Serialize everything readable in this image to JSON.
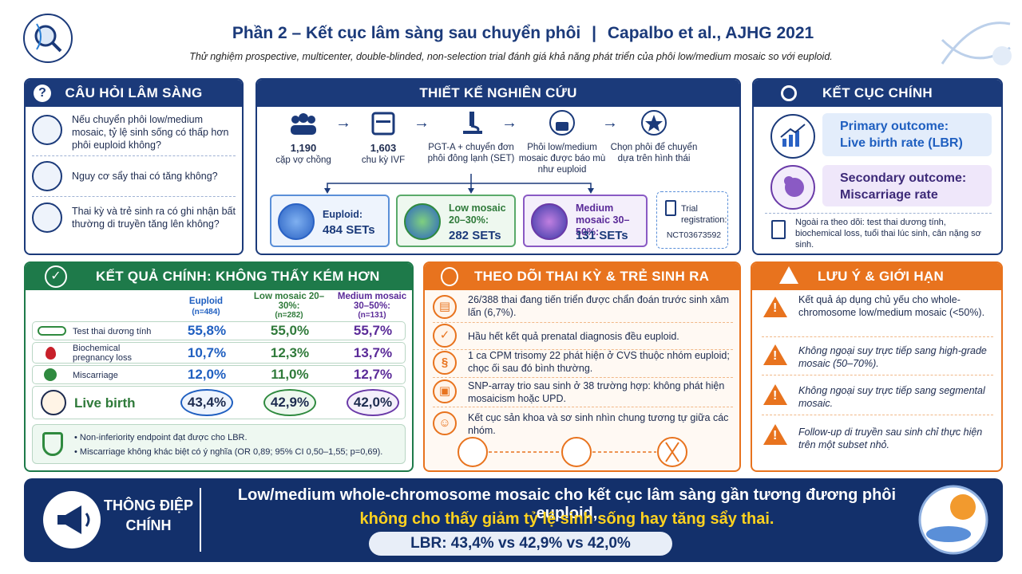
{
  "header": {
    "title": "Phần 2 – Kết cục lâm sàng sau chuyển phôi",
    "citation": "Capalbo et al., AJHG 2021",
    "subtitle": "Thử nghiệm prospective, multicenter, double-blinded, non-selection trial đánh giá khả năng phát triển của phôi low/medium mosaic so với euploid."
  },
  "clinical_questions": {
    "title": "CÂU HỎI LÂM SÀNG",
    "items": [
      "Nếu chuyển phôi low/medium mosaic, tỷ lệ sinh sống có thấp hơn phôi euploid không?",
      "Nguy cơ sẩy thai có tăng không?",
      "Thai kỳ và trẻ sinh ra có ghi nhận bất thường di truyền tăng lên không?"
    ]
  },
  "study_design": {
    "title": "THIẾT KẾ NGHIÊN CỨU",
    "steps": [
      {
        "value": "1,190",
        "label": "cặp vợ chồng"
      },
      {
        "value": "1,603",
        "label": "chu kỳ IVF"
      },
      {
        "label": "PGT-A + chuyển đơn phôi đông lạnh (SET)"
      },
      {
        "label": "Phôi low/medium mosaic được báo mù như euploid"
      },
      {
        "label": "Chọn phôi để chuyển dựa trên hình thái"
      }
    ],
    "groups": [
      {
        "name": "Euploid:",
        "count": "484 SETs"
      },
      {
        "name": "Low mosaic 20–30%:",
        "count": "282 SETs"
      },
      {
        "name": "Medium mosaic 30–50%:",
        "count": "131 SETs"
      }
    ],
    "registration": {
      "label": "Trial registration:",
      "id": "NCT03673592"
    }
  },
  "outcomes": {
    "title": "KẾT CỤC CHÍNH",
    "primary": {
      "label": "Primary outcome:",
      "value": "Live birth rate (LBR)"
    },
    "secondary": {
      "label": "Secondary outcome:",
      "value": "Miscarriage rate"
    },
    "note": "Ngoài ra theo dõi: test thai dương tính, biochemical loss, tuổi thai lúc sinh, cân nặng sơ sinh."
  },
  "results": {
    "title": "KẾT QUẢ CHÍNH: KHÔNG THẤY KÉM HƠN",
    "columns": [
      {
        "name": "Euploid",
        "n": "(n=484)"
      },
      {
        "name": "Low mosaic 20–30%:",
        "n": "(n=282)"
      },
      {
        "name": "Medium mosaic 30–50%:",
        "n": "(n=131)"
      }
    ],
    "rows": [
      {
        "label": "Test thai dương tính",
        "values": [
          "55,8%",
          "55,0%",
          "55,7%"
        ]
      },
      {
        "label": "Biochemical pregnancy loss",
        "values": [
          "10,7%",
          "12,3%",
          "13,7%"
        ]
      },
      {
        "label": "Miscarriage",
        "values": [
          "12,0%",
          "11,0%",
          "12,7%"
        ]
      },
      {
        "label": "Live birth",
        "values": [
          "43,4%",
          "42,9%",
          "42,0%"
        ]
      }
    ],
    "notes": [
      "Non-inferiority endpoint đạt được cho LBR.",
      "Miscarriage không khác biệt có ý nghĩa (OR 0,89; 95% CI 0,50–1,55; p=0,69)."
    ]
  },
  "follow_up": {
    "title": "THEO DÕI THAI KỲ & TRẺ SINH RA",
    "items": [
      "26/388 thai đang tiến triển được chẩn đoán trước sinh xâm lấn (6,7%).",
      "Hầu hết kết quả prenatal diagnosis đều euploid.",
      "1 ca CPM trisomy 22 phát hiện ở CVS thuộc nhóm euploid; chọc ối sau đó bình thường.",
      "SNP-array trio sau sinh ở 38 trường hợp: không phát hiện mosaicism hoặc UPD.",
      "Kết cục sản khoa và sơ sinh nhìn chung tương tự giữa các nhóm."
    ]
  },
  "limitations": {
    "title": "LƯU Ý & GIỚI HẠN",
    "items": [
      "Kết quả áp dụng chủ yếu cho whole-chromosome low/medium mosaic (<50%).",
      "Không ngoại suy trực tiếp sang high-grade mosaic (50–70%).",
      "Không ngoại suy trực tiếp sang segmental mosaic.",
      "Follow-up di truyền sau sinh chỉ thực hiện trên một subset nhỏ."
    ]
  },
  "key_message": {
    "title": "THÔNG ĐIỆP CHÍNH",
    "line1": "Low/medium whole-chromosome mosaic cho kết cục lâm sàng gần tương đương phôi euploid,",
    "line2": "không cho thấy giảm tỷ lệ sinh sống hay tăng sẩy thai.",
    "summary": "LBR: 43,4% vs 42,9% vs 42,0%"
  }
}
